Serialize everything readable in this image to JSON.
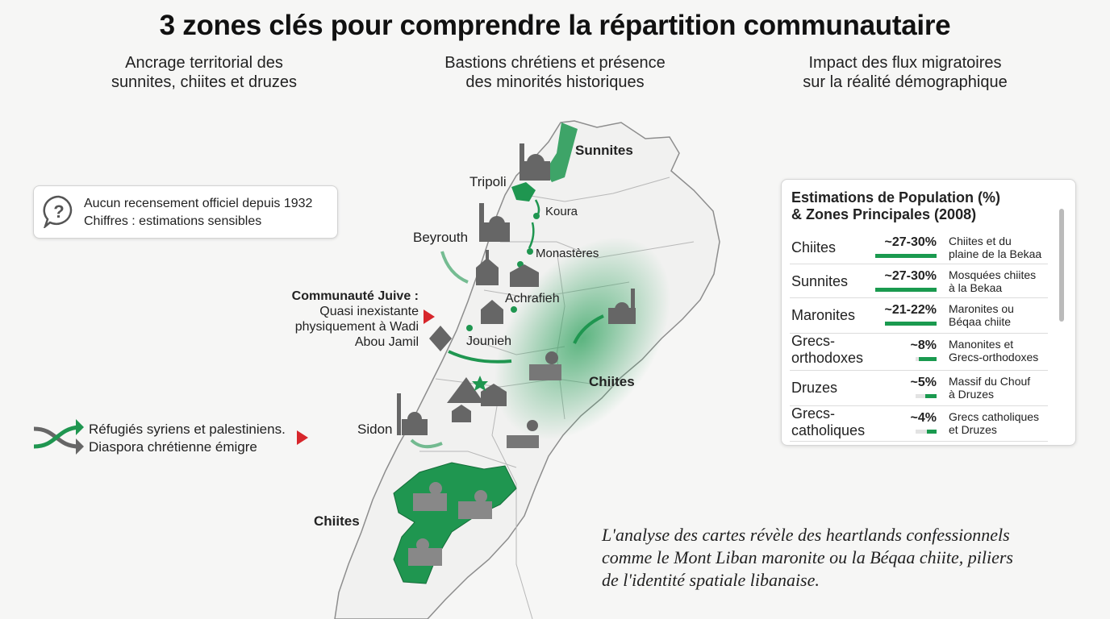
{
  "header": {
    "title": "3 zones clés pour comprendre la répartition communautaire"
  },
  "columns": [
    {
      "lines": [
        "Ancrage territorial des",
        "sunnites, chiites et druzes"
      ]
    },
    {
      "lines": [
        "Bastions chrétiens et présence",
        "des minorités historiques"
      ]
    },
    {
      "lines": [
        "Impact des flux migratoires",
        "sur la réalité démographique"
      ]
    }
  ],
  "notice": {
    "icon": "?",
    "lines": [
      "Aucun recensement officiel depuis 1932",
      "Chiffres : estimations sensibles"
    ]
  },
  "map_labels": {
    "sunnites": "Sunnites",
    "tripoli": "Tripoli",
    "koura": "Koura",
    "beyrouth": "Beyrouth",
    "monasteres": "Monastères",
    "achrafieh": "Achrafieh",
    "jounieh": "Jounieh",
    "chiites_bekaa": "Chiites",
    "sidon": "Sidon",
    "chiites_sud": "Chiites"
  },
  "jewish_note": {
    "title": "Communauté Juive :",
    "lines": [
      "Quasi inexistante",
      "physiquement à Wadi",
      "Abou Jamil"
    ]
  },
  "migration": {
    "lines": [
      "Réfugiés syriens et palestiniens.",
      "Diaspora chrétienne émigre"
    ]
  },
  "panel": {
    "title_lines": [
      "Estimations de Population (%)",
      "& Zones Principales (2008)"
    ],
    "rows": [
      {
        "name_lines": [
          "Chiites"
        ],
        "range": "~27-30%",
        "note_lines": [
          "Chiites et du",
          "plaine de la Bekaa"
        ]
      },
      {
        "name_lines": [
          "Sunnites"
        ],
        "range": "~27-30%",
        "note_lines": [
          "Mosquées chiites",
          "à la Bekaa"
        ]
      },
      {
        "name_lines": [
          "Maronites"
        ],
        "range": "~21-22%",
        "note_lines": [
          "Maronites ou",
          "Béqaa chiite"
        ]
      },
      {
        "name_lines": [
          "Grecs-",
          "orthodoxes"
        ],
        "range": "~8%",
        "note_lines": [
          "Manonites et",
          "Grecs-orthodoxes"
        ]
      },
      {
        "name_lines": [
          "Druzes"
        ],
        "range": "~5%",
        "note_lines": [
          "Massif du Chouf",
          "à Druzes"
        ]
      },
      {
        "name_lines": [
          "Grecs-",
          "catholiques"
        ],
        "range": "~4%",
        "note_lines": [
          "Grecs catholiques",
          "et Druzes"
        ]
      }
    ]
  },
  "quote": {
    "lines": [
      "L'analyse des cartes révèle des heartlands confessionnels",
      "comme le Mont Liban maronite ou la Béqaa chiite, piliers",
      "de l'identité spatiale libanaise."
    ]
  }
}
